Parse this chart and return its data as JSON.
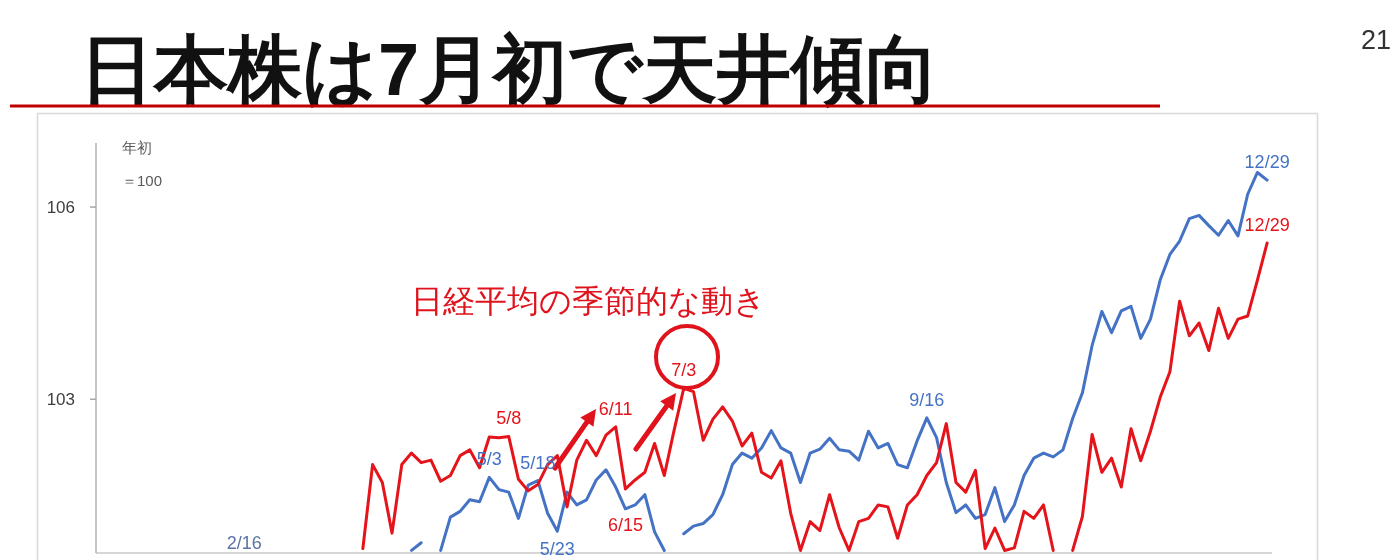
{
  "chart_data": {
    "type": "line",
    "title": "日本株は7月初で天井傾向",
    "subtitle": "日経平均の季節的な動き",
    "ylabel": "年初＝100",
    "annotations": [
      "21",
      "2/16",
      {
        "text": "5/3",
        "y": 101.78
      },
      {
        "text": "5/8",
        "y": 102.42
      },
      {
        "text": "5/18",
        "y": 101.73
      },
      {
        "text": "5/23",
        "y": 100.94
      },
      {
        "text": "6/11",
        "y": 102.57
      },
      {
        "text": "6/15",
        "y": 101.6
      },
      {
        "text": "7/3",
        "y": 103.17
      },
      {
        "text": "9/16",
        "y": 102.71
      },
      {
        "text": "12/29",
        "y": 106.42
      },
      {
        "text": "12/29",
        "y": 105.44
      }
    ],
    "categories": [
      null,
      null,
      null,
      null,
      null,
      null,
      null,
      null,
      null,
      null,
      null,
      null,
      null,
      null,
      null,
      null,
      null,
      null,
      null,
      null,
      null,
      null,
      null,
      null,
      null,
      null,
      null,
      null,
      null,
      null,
      null,
      null,
      null,
      null,
      null,
      null,
      null,
      null,
      null,
      null,
      null,
      null,
      null,
      null,
      null,
      null,
      null,
      null,
      null,
      null,
      null,
      null,
      null,
      null,
      null,
      null,
      null,
      null,
      null,
      null,
      null,
      null,
      null,
      null,
      null,
      null,
      null,
      null,
      null,
      null,
      null,
      null,
      null,
      null,
      null,
      null,
      null,
      null,
      null,
      null,
      null,
      null,
      null,
      null,
      null,
      null,
      null,
      null,
      null,
      null,
      null,
      null,
      null,
      null
    ],
    "ylim": [
      100.6,
      107
    ],
    "yticks": [
      103,
      106
    ],
    "series": [
      {
        "color": "#4472c4",
        "values": [
          null,
          null,
          null,
          null,
          null,
          100.64,
          100.76,
          null,
          null,
          null,
          null,
          null,
          null,
          null,
          null,
          null,
          null,
          null,
          null,
          null,
          null,
          null,
          null,
          null,
          null,
          null,
          null,
          null,
          null,
          null,
          null,
          null,
          null,
          null,
          null,
          null,
          null,
          null,
          null,
          null,
          null,
          null,
          null,
          null,
          null,
          null,
          null,
          null,
          null,
          null,
          null,
          null,
          null,
          null,
          null,
          null,
          null,
          null,
          null,
          null,
          null,
          null,
          null,
          null,
          null,
          null,
          null,
          null,
          null,
          null,
          null,
          null,
          null,
          null,
          null,
          null,
          null,
          null,
          null,
          null,
          null,
          null,
          null,
          null,
          null,
          null,
          null,
          null,
          null,
          null,
          null,
          null,
          null,
          null
        ]
      },
      {
        "color": "#4472c4",
        "values": [
          null,
          null,
          null,
          null,
          null,
          null,
          null,
          null,
          100.64,
          101.16,
          101.25,
          101.43,
          101.4,
          101.78,
          101.59,
          101.55,
          101.14,
          101.66,
          101.73,
          101.22,
          100.94,
          101.55,
          101.35,
          101.43,
          101.74,
          101.9,
          101.63,
          101.29,
          101.35,
          101.51,
          100.93,
          100.64,
          null,
          null,
          null,
          null,
          null,
          null,
          null,
          null,
          null,
          null,
          null,
          null,
          null,
          null,
          null,
          null,
          null,
          null,
          null,
          null,
          null,
          null,
          null,
          null,
          null,
          null,
          null,
          null,
          null,
          null,
          null,
          null,
          null,
          null,
          null,
          null,
          null,
          null,
          null,
          null,
          null,
          null,
          null,
          null,
          null,
          null,
          null,
          null,
          null,
          null,
          null,
          null,
          null,
          null,
          null,
          null,
          null,
          null,
          null,
          null,
          null,
          null
        ]
      },
      {
        "color": "#4472c4",
        "values": [
          null,
          null,
          null,
          null,
          null,
          null,
          null,
          null,
          null,
          null,
          null,
          null,
          null,
          null,
          null,
          null,
          null,
          null,
          null,
          null,
          null,
          null,
          null,
          null,
          null,
          null,
          null,
          null,
          null,
          null,
          null,
          null,
          null,
          100.9,
          101.02,
          101.06,
          101.2,
          101.51,
          101.98,
          102.16,
          102.08,
          102.24,
          102.51,
          102.24,
          102.16,
          101.7,
          102.16,
          102.22,
          102.39,
          102.21,
          102.19,
          102.05,
          102.5,
          102.24,
          102.31,
          101.98,
          101.93,
          102.35,
          102.71,
          102.4,
          101.7,
          101.23,
          101.35,
          101.14,
          101.2,
          101.62,
          101.09,
          101.35,
          101.81,
          102.08,
          102.16,
          102.1,
          102.21,
          102.7,
          103.1,
          103.84,
          104.37,
          104.04,
          104.38,
          104.45,
          103.95,
          104.25,
          104.86,
          105.26,
          105.47,
          105.82,
          105.87,
          105.71,
          105.56,
          105.79,
          105.55,
          106.2,
          106.54,
          106.42
        ]
      },
      {
        "color": "#e5141b",
        "values": [
          100.67,
          101.98,
          101.7,
          100.91,
          101.98,
          102.16,
          102.01,
          102.05,
          101.72,
          101.81,
          102.12,
          102.21,
          101.93,
          102.41,
          102.4,
          102.42,
          101.75,
          101.57,
          101.67,
          101.98,
          102.12,
          101.32,
          102.05,
          102.36,
          102.12,
          102.44,
          102.57,
          101.6,
          101.74,
          101.86,
          102.31,
          101.81,
          102.51,
          103.17,
          103.12,
          102.36,
          102.69,
          102.88,
          102.66,
          102.27,
          102.47,
          101.86,
          101.77,
          102.04,
          101.22,
          100.64,
          101.09,
          100.95,
          101.51,
          100.99,
          100.64,
          101.09,
          101.14,
          101.35,
          101.32,
          100.83,
          101.35,
          101.51,
          101.81,
          102.01,
          102.62,
          101.7,
          101.55,
          101.89,
          100.67,
          100.99,
          100.64,
          100.68,
          101.25,
          101.14,
          101.35,
          100.64,
          null,
          null,
          null,
          null,
          null,
          null,
          null,
          null,
          null,
          null,
          null,
          null,
          null,
          null,
          null,
          null,
          null,
          null,
          null,
          null,
          null,
          null
        ]
      },
      {
        "color": "#e5141b",
        "values": [
          null,
          null,
          null,
          null,
          null,
          null,
          null,
          null,
          null,
          null,
          null,
          null,
          null,
          null,
          null,
          null,
          null,
          null,
          null,
          null,
          null,
          null,
          null,
          null,
          null,
          null,
          null,
          null,
          null,
          null,
          null,
          null,
          null,
          null,
          null,
          null,
          null,
          null,
          null,
          null,
          null,
          null,
          null,
          null,
          null,
          null,
          null,
          null,
          null,
          null,
          null,
          null,
          null,
          null,
          null,
          null,
          null,
          null,
          null,
          null,
          null,
          null,
          null,
          null,
          null,
          null,
          null,
          null,
          null,
          null,
          null,
          null,
          null,
          100.64,
          101.17,
          102.45,
          101.86,
          102.08,
          101.63,
          102.54,
          102.04,
          102.5,
          103.03,
          103.43,
          104.53,
          103.99,
          104.19,
          103.76,
          104.42,
          103.95,
          104.25,
          104.3,
          104.86,
          105.44
        ]
      }
    ]
  }
}
